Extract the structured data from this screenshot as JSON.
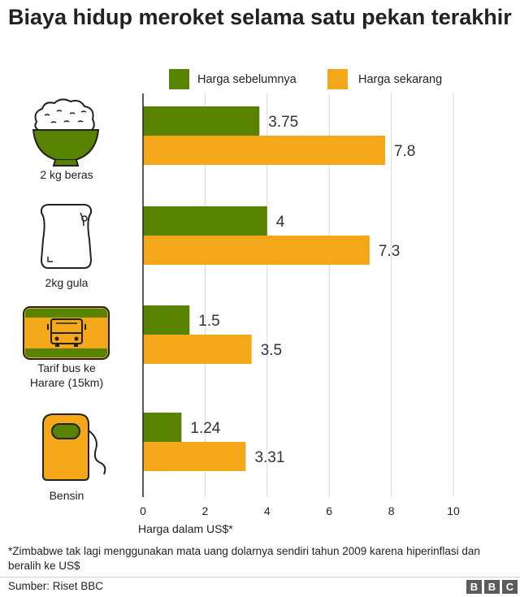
{
  "title": "Biaya hidup meroket selama satu pekan terakhir",
  "note": "*Zimbabwe tak lagi menggunakan mata uang dolarnya sendiri tahun 2009 karena hiperinflasi dan beralih ke US$",
  "source": "Sumber: Riset BBC",
  "logo": [
    "B",
    "B",
    "C"
  ],
  "colors": {
    "before": "#588300",
    "now": "#f4a718",
    "grid": "#d9d9d9",
    "axis": "#222222"
  },
  "chart_data": {
    "type": "bar",
    "orientation": "horizontal",
    "categories": [
      "2 kg beras",
      "2kg gula",
      "Tarif bus ke Harare (15km)",
      "Bensin"
    ],
    "category_lines": [
      [
        "2 kg beras"
      ],
      [
        "2kg gula"
      ],
      [
        "Tarif bus ke",
        "Harare (15km)"
      ],
      [
        "Bensin"
      ]
    ],
    "category_icons": [
      "rice-bowl-icon",
      "sugar-bag-icon",
      "bus-ticket-icon",
      "fuel-pump-icon"
    ],
    "series": [
      {
        "name": "Harga sebelumnya",
        "values": [
          3.75,
          4,
          1.5,
          1.24
        ],
        "labels": [
          "3.75",
          "4",
          "1.5",
          "1.24"
        ]
      },
      {
        "name": "Harga sekarang",
        "values": [
          7.8,
          7.3,
          3.5,
          3.31
        ],
        "labels": [
          "7.8",
          "7.3",
          "3.5",
          "3.31"
        ]
      }
    ],
    "xlabel": "Harga dalam US$*",
    "xlim": [
      0,
      10
    ],
    "xticks": [
      0,
      2,
      4,
      6,
      8,
      10
    ],
    "grid": true,
    "legend": "top-right"
  }
}
